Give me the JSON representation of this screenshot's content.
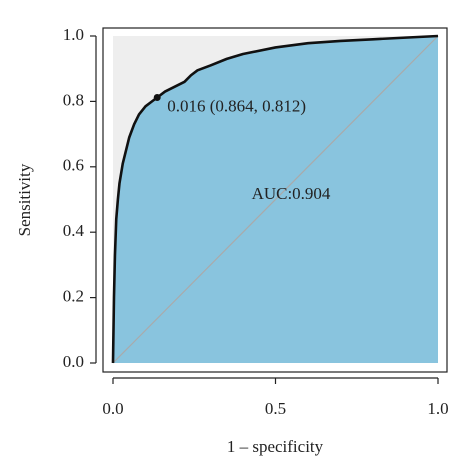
{
  "chart_data": {
    "type": "roc",
    "x_label": "1 – specificity",
    "y_label": "Sensitivity",
    "x": [
      0,
      0.003,
      0.006,
      0.01,
      0.015,
      0.02,
      0.03,
      0.04,
      0.05,
      0.065,
      0.08,
      0.1,
      0.12,
      0.136,
      0.16,
      0.19,
      0.22,
      0.24,
      0.26,
      0.3,
      0.35,
      0.4,
      0.5,
      0.6,
      0.7,
      0.8,
      0.9,
      1
    ],
    "values": [
      0,
      0.2,
      0.33,
      0.44,
      0.5,
      0.55,
      0.61,
      0.65,
      0.69,
      0.73,
      0.76,
      0.785,
      0.8,
      0.812,
      0.83,
      0.845,
      0.86,
      0.88,
      0.895,
      0.91,
      0.93,
      0.945,
      0.965,
      0.978,
      0.985,
      0.99,
      0.995,
      1
    ],
    "color": "#111111",
    "fill_color": "#89c4de",
    "background_color": "#eeeeee",
    "point": {
      "x": 0.136,
      "y": 0.812
    },
    "point_label": "0.016 (0.864, 0.812)",
    "auc_label": "AUC:0.904",
    "xlim": [
      0,
      1
    ],
    "ylim": [
      0,
      1
    ],
    "xticks": [
      {
        "value": 0,
        "label": "0.0"
      },
      {
        "value": 0.5,
        "label": "0.5"
      },
      {
        "value": 1,
        "label": "1.0"
      }
    ],
    "yticks": [
      {
        "value": 0,
        "label": "0.0"
      },
      0.2,
      0.4,
      0.6,
      0.8,
      {
        "value": 1,
        "label": "1.0"
      }
    ]
  }
}
